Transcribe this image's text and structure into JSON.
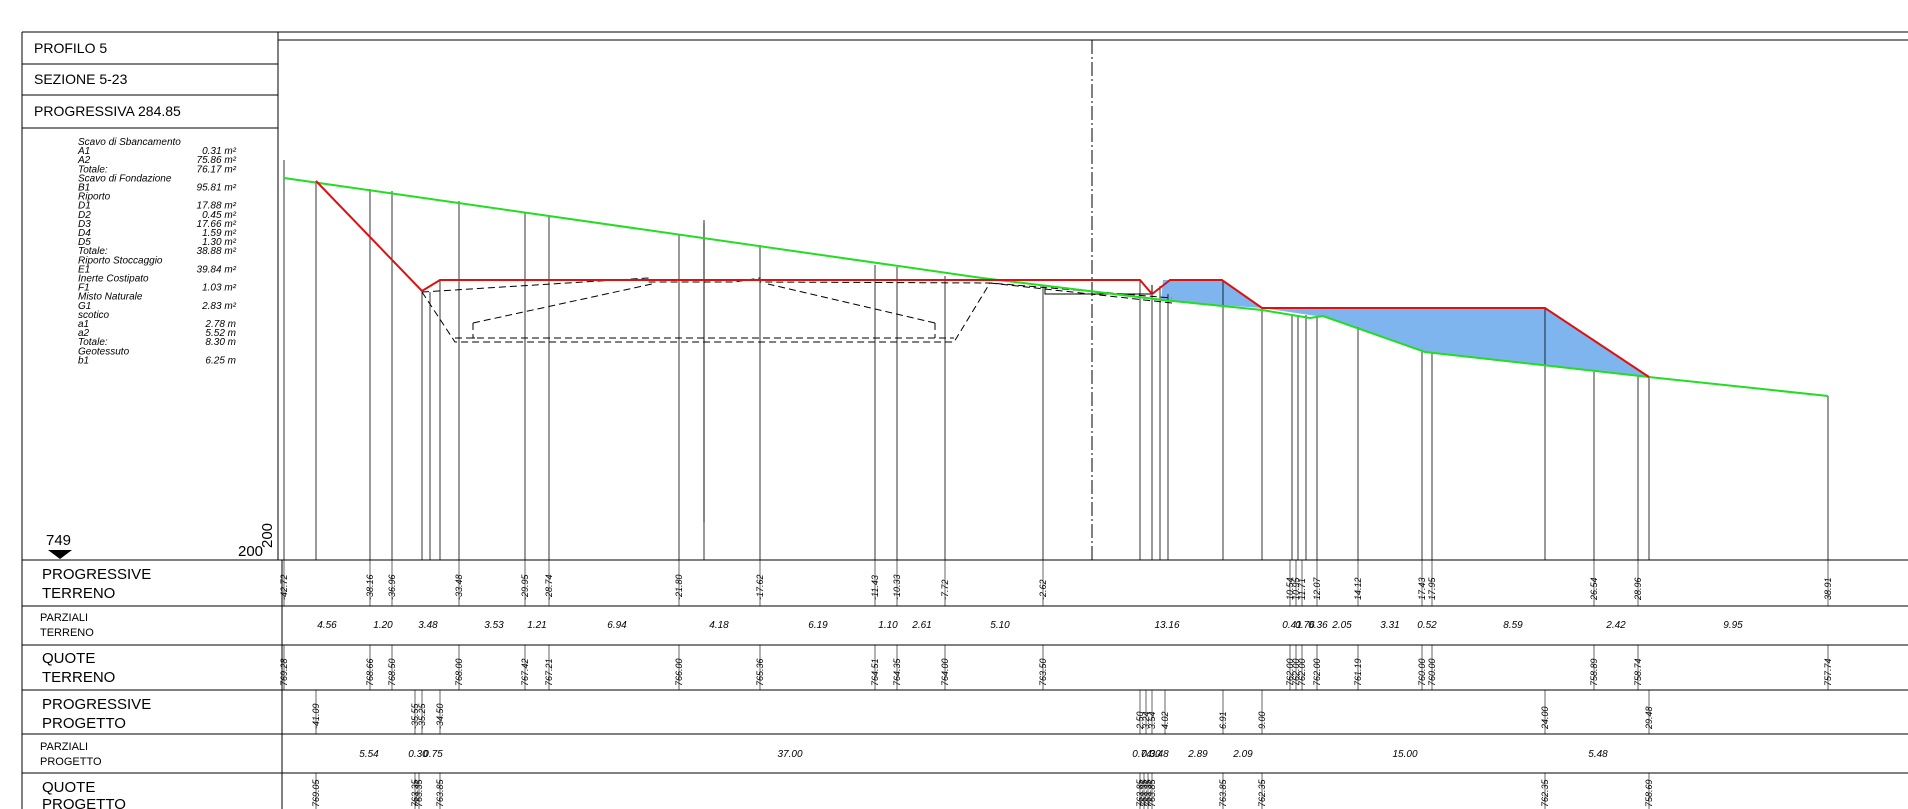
{
  "header": {
    "profilo": "PROFILO  5",
    "sezione": "SEZIONE  5-23",
    "progressiva": "PROGRESSIVA   284.85"
  },
  "quantities": [
    {
      "label": "Scavo di Sbancamento",
      "value": ""
    },
    {
      "label": "A1",
      "value": "0.31 m²"
    },
    {
      "label": "A2",
      "value": "75.86 m²"
    },
    {
      "label": "Totale:",
      "value": "76.17 m²"
    },
    {
      "label": "Scavo di Fondazione",
      "value": ""
    },
    {
      "label": "B1",
      "value": "95.81 m²"
    },
    {
      "label": "Riporto",
      "value": ""
    },
    {
      "label": "D1",
      "value": "17.88 m²"
    },
    {
      "label": "D2",
      "value": "0.45 m²"
    },
    {
      "label": "D3",
      "value": "17.66 m²"
    },
    {
      "label": "D4",
      "value": "1.59 m²"
    },
    {
      "label": "D5",
      "value": "1.30 m²"
    },
    {
      "label": "Totale:",
      "value": "38.88 m²"
    },
    {
      "label": "Riporto Stoccaggio",
      "value": ""
    },
    {
      "label": "E1",
      "value": "39.84 m²"
    },
    {
      "label": "Inerte Costipato",
      "value": ""
    },
    {
      "label": "F1",
      "value": "1.03 m²"
    },
    {
      "label": "Misto Naturale",
      "value": ""
    },
    {
      "label": "G1",
      "value": "2.83 m²"
    },
    {
      "label": "scotico",
      "value": ""
    },
    {
      "label": "a1",
      "value": "2.78 m"
    },
    {
      "label": "a2",
      "value": "5.52 m"
    },
    {
      "label": "Totale:",
      "value": "8.30 m"
    },
    {
      "label": "Geotessuto",
      "value": ""
    },
    {
      "label": "b1",
      "value": "6.25 m"
    }
  ],
  "datum": {
    "value": "749",
    "scale_left": "200",
    "scale_right": "200"
  },
  "rows": {
    "prog_terreno": [
      "PROGRESSIVE",
      "TERRENO"
    ],
    "parz_terreno": [
      "PARZIALI",
      "TERRENO"
    ],
    "quote_terreno": [
      "QUOTE",
      "TERRENO"
    ],
    "prog_progetto": [
      "PROGRESSIVE",
      "PROGETTO"
    ],
    "parz_progetto": [
      "PARZIALI",
      "PROGETTO"
    ],
    "quote_progetto": [
      "QUOTE",
      "PROGETTO"
    ]
  },
  "prog_terreno_values": [
    "-42.72",
    "-38.16",
    "-36.96",
    "-33.48",
    "-29.95",
    "-28.74",
    "-21.80",
    "-17.62",
    "-11.43",
    "-10.33",
    "-7.72",
    "-2.62",
    "10.54",
    "10.95",
    "11.71",
    "12.07",
    "14.12",
    "17.43",
    "17.95",
    "26.54",
    "28.96",
    "38.91"
  ],
  "parz_terreno_values": [
    "4.56",
    "1.20",
    "3.48",
    "3.53",
    "1.21",
    "6.94",
    "4.18",
    "6.19",
    "1.10",
    "2.61",
    "5.10",
    "13.16",
    "0.41",
    "0.76",
    "0.36",
    "2.05",
    "3.31",
    "0.52",
    "8.59",
    "2.42",
    "9.95"
  ],
  "quote_terreno_values": [
    "769.28",
    "768.66",
    "768.50",
    "768.00",
    "767.42",
    "767.21",
    "766.00",
    "765.36",
    "764.51",
    "764.35",
    "764.00",
    "763.50",
    "762.00",
    "762.00",
    "762.00",
    "762.00",
    "761.19",
    "760.00",
    "760.00",
    "758.89",
    "758.74",
    "757.74"
  ],
  "prog_progetto_values": [
    "-41.09",
    "-35.55",
    "-35.25",
    "-34.50",
    "2.50",
    "3.24",
    "3.54",
    "4.02",
    "6.91",
    "9.00",
    "24.00",
    "29.48"
  ],
  "parz_progetto_values": [
    "5.54",
    "0.30",
    "0.75",
    "37.00",
    "0.74",
    "0.30",
    "0.48",
    "2.89",
    "2.09",
    "15.00",
    "5.48"
  ],
  "quote_progetto_values": [
    "769.05",
    "763.35",
    "763.35",
    "763.85",
    "763.85",
    "763.35",
    "763.35",
    "763.85",
    "763.85",
    "762.35",
    "762.35",
    "758.69"
  ],
  "colors": {
    "terrain": "#22dd22",
    "design": "#dd1111",
    "fill": "#7fb5ee"
  }
}
